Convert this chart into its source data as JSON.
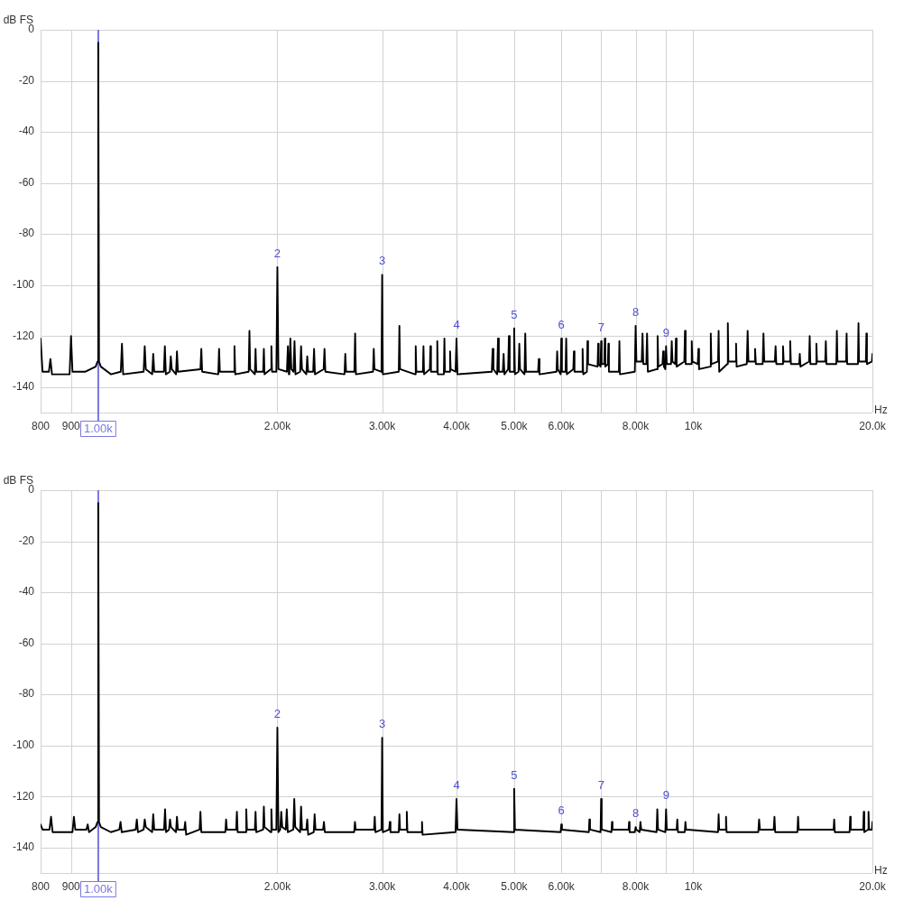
{
  "chart_data": [
    {
      "type": "line",
      "xlabel": "Hz",
      "ylabel": "dB FS",
      "log": "x",
      "grid": true,
      "xlim": [
        800,
        20000
      ],
      "xticks": [
        {
          "value": 800,
          "label": "800"
        },
        {
          "value": 900,
          "label": "900"
        },
        {
          "value": 1000,
          "label": null
        },
        {
          "value": 2000,
          "label": "2.00k"
        },
        {
          "value": 3000,
          "label": "3.00k"
        },
        {
          "value": 4000,
          "label": "4.00k"
        },
        {
          "value": 5000,
          "label": "5.00k"
        },
        {
          "value": 6000,
          "label": "6.00k"
        },
        {
          "value": 7000,
          "label": null
        },
        {
          "value": 8000,
          "label": "8.00k"
        },
        {
          "value": 9000,
          "label": null
        },
        {
          "value": 10000,
          "label": "10k"
        },
        {
          "value": 20000,
          "label": "20.0k"
        }
      ],
      "ylim": [
        -150,
        0
      ],
      "yticks": [
        0,
        -20,
        -40,
        -60,
        -80,
        -100,
        -120,
        -140
      ],
      "ref_lines": [
        {
          "axis": "x",
          "value": 1000,
          "label": "1.00k",
          "color": "#7878e0"
        }
      ],
      "annotations": [
        {
          "text": "2",
          "x": 2000,
          "y": -93
        },
        {
          "text": "3",
          "x": 3000,
          "y": -96
        },
        {
          "text": "4",
          "x": 4000,
          "y": -121
        },
        {
          "text": "5",
          "x": 5000,
          "y": -117
        },
        {
          "text": "6",
          "x": 6000,
          "y": -121
        },
        {
          "text": "7",
          "x": 7000,
          "y": -122
        },
        {
          "text": "8",
          "x": 8000,
          "y": -116
        },
        {
          "text": "9",
          "x": 9000,
          "y": -124
        }
      ],
      "x": [
        800,
        806,
        826,
        831,
        836,
        895,
        900,
        905,
        950,
        990,
        997,
        1000,
        1003,
        1010,
        1050,
        1091,
        1096,
        1101,
        1192,
        1197,
        1202,
        1232,
        1237,
        1242,
        1289,
        1294,
        1299,
        1319,
        1324,
        1329,
        1351,
        1356,
        1361,
        1485,
        1490,
        1495,
        1591,
        1596,
        1601,
        1689,
        1694,
        1699,
        1790,
        1795,
        1800,
        1833,
        1838,
        1843,
        1893,
        1898,
        1903,
        1949,
        1954,
        1959,
        1992,
        2000,
        2008,
        2075,
        2083,
        2091,
        2095,
        2103,
        2111,
        2129,
        2137,
        2145,
        2184,
        2192,
        2200,
        2237,
        2245,
        2253,
        2297,
        2305,
        2313,
        2392,
        2400,
        2408,
        2593,
        2601,
        2609,
        2694,
        2702,
        2710,
        2896,
        2904,
        2912,
        2992,
        3000,
        3008,
        3199,
        3207,
        3215,
        3408,
        3416,
        3424,
        3512,
        3520,
        3528,
        3608,
        3616,
        3624,
        3705,
        3713,
        3721,
        3809,
        3817,
        3825,
        3894,
        3902,
        3910,
        3985,
        4000,
        4015,
        4585,
        4600,
        4615,
        4682,
        4697,
        4712,
        4785,
        4800,
        4815,
        4884,
        4899,
        4914,
        4985,
        5000,
        5015,
        5085,
        5100,
        5115,
        5204,
        5219,
        5234,
        5485,
        5500,
        5515,
        5890,
        5905,
        5920,
        5985,
        6000,
        6015,
        6100,
        6115,
        6130,
        6285,
        6300,
        6315,
        6501,
        6516,
        6531,
        6625,
        6640,
        6655,
        6905,
        6920,
        6935,
        6985,
        7000,
        7015,
        7085,
        7100,
        7115,
        7185,
        7200,
        7215,
        7498,
        7513,
        7528,
        7975,
        8000,
        8025,
        8191,
        8216,
        8241,
        8337,
        8362,
        8387,
        8685,
        8710,
        8735,
        8875,
        8900,
        8925,
        8975,
        9000,
        9025,
        9175,
        9200,
        9225,
        9325,
        9350,
        9375,
        9658,
        9683,
        9708,
        9915,
        9940,
        9965,
        10175,
        10200,
        10225,
        10675,
        10700,
        10725,
        11005,
        11030,
        11055,
        11405,
        11430,
        11455,
        11775,
        11800,
        11825,
        12300,
        12340,
        12380,
        12660,
        12700,
        12740,
        13080,
        13120,
        13160,
        13710,
        13750,
        13790,
        14110,
        14150,
        14190,
        14510,
        14550,
        14590,
        15060,
        15100,
        15140,
        15650,
        15690,
        15730,
        16060,
        16100,
        16140,
        16660,
        16700,
        16740,
        17390,
        17430,
        17470,
        18060,
        18100,
        18140,
        18910,
        18950,
        18990,
        19500,
        19540,
        19580,
        19960,
        20000
      ],
      "series": [
        {
          "color": "#000000",
          "values": [
            -121,
            -134,
            -134,
            -129,
            -135,
            -135,
            -120,
            -134,
            -134,
            -132,
            -130,
            -5,
            -130,
            -132,
            -135,
            -134,
            -123,
            -135,
            -134,
            -124,
            -133,
            -135,
            -127,
            -134,
            -134,
            -124,
            -135,
            -134,
            -128,
            -133,
            -135,
            -126,
            -134,
            -133,
            -125,
            -134,
            -135,
            -125,
            -134,
            -134,
            -124,
            -135,
            -134,
            -118,
            -133,
            -135,
            -125,
            -134,
            -134,
            -125,
            -135,
            -133,
            -124,
            -134,
            -134,
            -93,
            -133,
            -134,
            -124,
            -135,
            -134,
            -121,
            -133,
            -134,
            -122,
            -135,
            -134,
            -124,
            -133,
            -135,
            -128,
            -134,
            -134,
            -125,
            -135,
            -133,
            -125,
            -134,
            -135,
            -127,
            -134,
            -134,
            -119,
            -135,
            -134,
            -125,
            -133,
            -134,
            -96,
            -135,
            -134,
            -116,
            -133,
            -135,
            -124,
            -134,
            -134,
            -124,
            -135,
            -133,
            -124,
            -134,
            -134,
            -122,
            -135,
            -135,
            -121,
            -134,
            -134,
            -126,
            -133,
            -134,
            -121,
            -135,
            -134,
            -125,
            -133,
            -135,
            -121,
            -134,
            -134,
            -127,
            -135,
            -133,
            -120,
            -134,
            -134,
            -117,
            -135,
            -134,
            -123,
            -133,
            -135,
            -119,
            -134,
            -134,
            -129,
            -135,
            -134,
            -126,
            -133,
            -135,
            -121,
            -134,
            -134,
            -121,
            -135,
            -133,
            -126,
            -134,
            -134,
            -125,
            -135,
            -134,
            -122,
            -131,
            -132,
            -123,
            -131,
            -132,
            -122,
            -131,
            -131,
            -121,
            -132,
            -131,
            -123,
            -134,
            -134,
            -122,
            -135,
            -134,
            -116,
            -130,
            -130,
            -119,
            -131,
            -131,
            -119,
            -134,
            -133,
            -120,
            -132,
            -131,
            -126,
            -132,
            -133,
            -124,
            -131,
            -131,
            -122,
            -130,
            -131,
            -121,
            -132,
            -130,
            -118,
            -131,
            -131,
            -122,
            -130,
            -131,
            -125,
            -133,
            -132,
            -119,
            -131,
            -130,
            -118,
            -134,
            -131,
            -115,
            -130,
            -130,
            -123,
            -132,
            -131,
            -118,
            -130,
            -130,
            -125,
            -131,
            -131,
            -119,
            -130,
            -130,
            -124,
            -131,
            -131,
            -124,
            -130,
            -130,
            -122,
            -131,
            -131,
            -127,
            -132,
            -130,
            -120,
            -131,
            -131,
            -123,
            -130,
            -130,
            -122,
            -131,
            -131,
            -118,
            -130,
            -130,
            -119,
            -131,
            -131,
            -115,
            -130,
            -130,
            -119,
            -131,
            -130,
            -127
          ]
        }
      ]
    },
    {
      "type": "line",
      "xlabel": "Hz",
      "ylabel": "dB FS",
      "log": "x",
      "grid": true,
      "xlim": [
        800,
        20000
      ],
      "xticks": [
        {
          "value": 800,
          "label": "800"
        },
        {
          "value": 900,
          "label": "900"
        },
        {
          "value": 1000,
          "label": null
        },
        {
          "value": 2000,
          "label": "2.00k"
        },
        {
          "value": 3000,
          "label": "3.00k"
        },
        {
          "value": 4000,
          "label": "4.00k"
        },
        {
          "value": 5000,
          "label": "5.00k"
        },
        {
          "value": 6000,
          "label": "6.00k"
        },
        {
          "value": 7000,
          "label": null
        },
        {
          "value": 8000,
          "label": "8.00k"
        },
        {
          "value": 9000,
          "label": null
        },
        {
          "value": 10000,
          "label": "10k"
        },
        {
          "value": 20000,
          "label": "20.0k"
        }
      ],
      "ylim": [
        -150,
        0
      ],
      "yticks": [
        0,
        -20,
        -40,
        -60,
        -80,
        -100,
        -120,
        -140
      ],
      "ref_lines": [
        {
          "axis": "x",
          "value": 1000,
          "label": "1.00k",
          "color": "#7878e0"
        }
      ],
      "annotations": [
        {
          "text": "2",
          "x": 2000,
          "y": -93
        },
        {
          "text": "3",
          "x": 3000,
          "y": -97
        },
        {
          "text": "4",
          "x": 4000,
          "y": -121
        },
        {
          "text": "5",
          "x": 5000,
          "y": -117
        },
        {
          "text": "6",
          "x": 6000,
          "y": -131
        },
        {
          "text": "7",
          "x": 7000,
          "y": -121
        },
        {
          "text": "8",
          "x": 8000,
          "y": -132
        },
        {
          "text": "9",
          "x": 9000,
          "y": -125
        }
      ],
      "x": [
        800,
        806,
        828,
        833,
        838,
        905,
        910,
        915,
        955,
        960,
        965,
        990,
        997,
        1000,
        1003,
        1010,
        1050,
        1085,
        1090,
        1095,
        1156,
        1161,
        1166,
        1192,
        1197,
        1202,
        1232,
        1237,
        1242,
        1290,
        1295,
        1300,
        1315,
        1320,
        1325,
        1351,
        1356,
        1361,
        1395,
        1400,
        1405,
        1480,
        1485,
        1490,
        1635,
        1640,
        1645,
        1705,
        1710,
        1715,
        1768,
        1773,
        1778,
        1833,
        1838,
        1843,
        1893,
        1898,
        1903,
        1949,
        1954,
        1959,
        1992,
        2000,
        2008,
        2022,
        2030,
        2038,
        2066,
        2074,
        2082,
        2127,
        2135,
        2143,
        2184,
        2192,
        2200,
        2237,
        2245,
        2253,
        2302,
        2310,
        2318,
        2387,
        2395,
        2403,
        2692,
        2700,
        2708,
        2907,
        2915,
        2923,
        2992,
        3000,
        3008,
        3082,
        3090,
        3098,
        3199,
        3207,
        3215,
        3292,
        3300,
        3308,
        3492,
        3500,
        3508,
        3985,
        4000,
        4015,
        4985,
        5000,
        5015,
        5985,
        6000,
        6015,
        6675,
        6690,
        6705,
        6985,
        7000,
        7015,
        7285,
        7300,
        7315,
        7785,
        7800,
        7815,
        7975,
        8000,
        8025,
        8125,
        8150,
        8175,
        8675,
        8700,
        8725,
        8975,
        9000,
        9025,
        9375,
        9400,
        9425,
        9675,
        9700,
        9725,
        11005,
        11030,
        11055,
        11325,
        11350,
        11375,
        12860,
        12900,
        12940,
        13650,
        13690,
        13730,
        14960,
        15000,
        15040,
        17210,
        17250,
        17290,
        18310,
        18350,
        18390,
        19300,
        19340,
        19380,
        19660,
        19700,
        19740,
        19960,
        20000
      ],
      "series": [
        {
          "color": "#000000",
          "values": [
            -131,
            -133,
            -133,
            -128,
            -134,
            -134,
            -128,
            -133,
            -133,
            -131,
            -134,
            -132,
            -130,
            -5,
            -130,
            -132,
            -134,
            -133,
            -130,
            -134,
            -133,
            -129,
            -134,
            -133,
            -129,
            -132,
            -134,
            -127,
            -133,
            -133,
            -125,
            -134,
            -133,
            -129,
            -132,
            -134,
            -128,
            -133,
            -133,
            -130,
            -135,
            -133,
            -126,
            -134,
            -134,
            -129,
            -133,
            -133,
            -126,
            -134,
            -134,
            -125,
            -133,
            -133,
            -126,
            -134,
            -133,
            -124,
            -132,
            -134,
            -125,
            -133,
            -133,
            -93,
            -134,
            -133,
            -126,
            -132,
            -133,
            -125,
            -134,
            -133,
            -121,
            -132,
            -134,
            -124,
            -133,
            -133,
            -129,
            -135,
            -134,
            -127,
            -133,
            -133,
            -130,
            -134,
            -134,
            -130,
            -133,
            -133,
            -128,
            -134,
            -133,
            -97,
            -134,
            -133,
            -130,
            -134,
            -134,
            -127,
            -133,
            -133,
            -126,
            -134,
            -134,
            -130,
            -135,
            -134,
            -121,
            -133,
            -134,
            -117,
            -133,
            -134,
            -131,
            -133,
            -134,
            -129,
            -133,
            -134,
            -121,
            -133,
            -134,
            -130,
            -133,
            -133,
            -130,
            -134,
            -134,
            -132,
            -133,
            -134,
            -130,
            -133,
            -134,
            -125,
            -133,
            -134,
            -125,
            -133,
            -133,
            -129,
            -134,
            -134,
            -130,
            -133,
            -134,
            -127,
            -133,
            -133,
            -128,
            -134,
            -134,
            -129,
            -133,
            -133,
            -128,
            -134,
            -134,
            -128,
            -133,
            -133,
            -129,
            -134,
            -134,
            -128,
            -133,
            -133,
            -126,
            -134,
            -133,
            -126,
            -133,
            -133,
            -130
          ]
        }
      ]
    }
  ]
}
